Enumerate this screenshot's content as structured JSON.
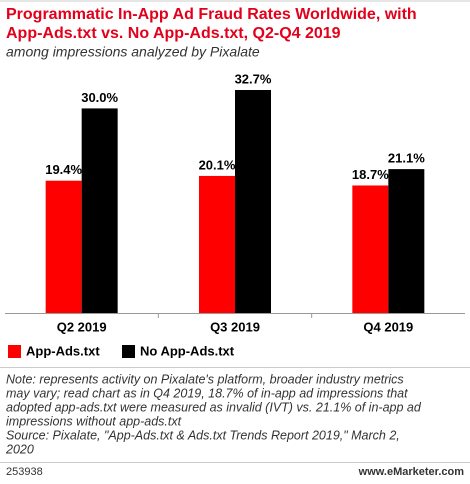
{
  "chart_data": {
    "type": "bar",
    "title": [
      "Programmatic In-App Ad Fraud Rates Worldwide, with",
      "App-Ads.txt vs. No App-Ads.txt, Q2-Q4 2019"
    ],
    "subtitle": "among impressions analyzed by Pixalate",
    "categories": [
      "Q2 2019",
      "Q3 2019",
      "Q4 2019"
    ],
    "series": [
      {
        "name": "App-Ads.txt",
        "color": "#ff0000",
        "values": [
          19.4,
          20.1,
          18.7
        ],
        "value_labels": [
          "19.4%",
          "20.1%",
          "18.7%"
        ]
      },
      {
        "name": "No App-Ads.txt",
        "color": "#000000",
        "values": [
          30.0,
          32.7,
          21.1
        ],
        "value_labels": [
          "30.0%",
          "32.7%",
          "21.1%"
        ]
      }
    ],
    "note": [
      "Note: represents activity on Pixalate's platform, broader industry metrics",
      "may vary; read chart as in Q4 2019, 18.7% of in-app ad impressions that",
      "adopted app-ads.txt were measured as invalid (IVT) vs. 21.1% of in-app ad",
      "impressions without app-ads.txt"
    ],
    "source": [
      "Source: Pixalate, \"App-Ads.txt & Ads.txt Trends Report 2019,\" March 2,",
      "2020"
    ],
    "chart_id": "253938",
    "brand": "www.eMarketer.com"
  }
}
